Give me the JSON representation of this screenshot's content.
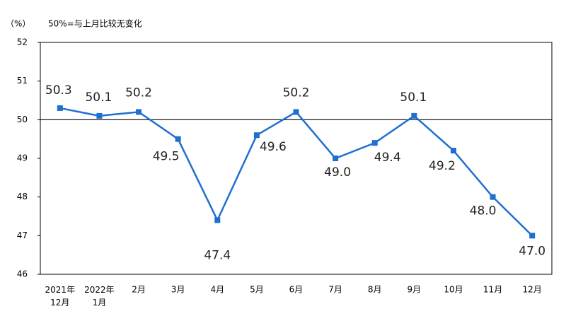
{
  "chart_data": {
    "type": "line",
    "y_unit_label": "（%）",
    "annotation": "50%=与上月比较无变化",
    "categories": [
      "2021年12月",
      "2022年1月",
      "2月",
      "3月",
      "4月",
      "5月",
      "6月",
      "7月",
      "8月",
      "9月",
      "10月",
      "11月",
      "12月"
    ],
    "series": [
      {
        "color": "#1e6fd0",
        "values": [
          50.3,
          50.1,
          50.2,
          49.5,
          47.4,
          49.6,
          50.2,
          49.0,
          49.4,
          50.1,
          49.2,
          48.0,
          47.0
        ],
        "value_labels": [
          "50.3",
          "50.1",
          "50.2",
          "49.5",
          "47.4",
          "49.6",
          "50.2",
          "49.0",
          "49.4",
          "50.1",
          "49.2",
          "48.0",
          "47.0"
        ]
      }
    ],
    "ylim": [
      46,
      52
    ],
    "yticks": [
      46,
      47,
      48,
      49,
      50,
      51,
      52
    ],
    "reference_line": 50
  }
}
